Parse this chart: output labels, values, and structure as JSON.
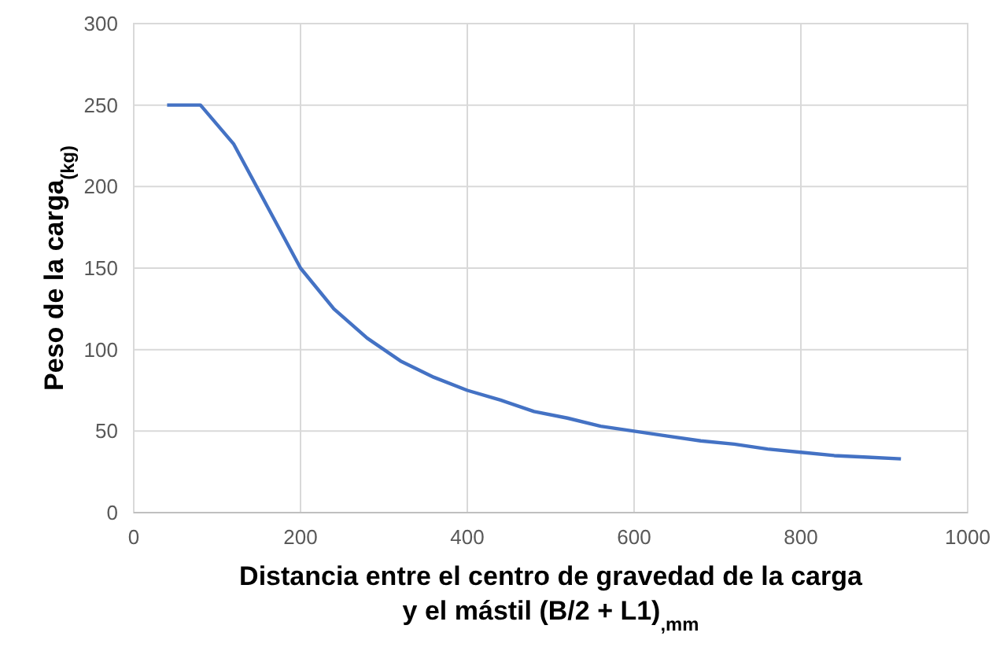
{
  "chart_data": {
    "type": "line",
    "xlabel": "Distancia entre el centro de gravedad de la carga\ny el mástil (B/2 + L1)$_{,mm}$",
    "ylabel": "Peso de la carga$_{(kg)}$",
    "x": [
      40,
      80,
      120,
      160,
      200,
      240,
      280,
      320,
      360,
      400,
      440,
      480,
      520,
      560,
      600,
      640,
      680,
      720,
      760,
      800,
      840,
      880,
      920
    ],
    "series": [
      {
        "color": "#4472c4",
        "values": [
          250,
          250,
          226,
          188,
          150,
          125,
          107,
          93,
          83,
          75,
          69,
          62,
          58,
          53,
          50,
          47,
          44,
          42,
          39,
          37,
          35,
          34,
          33
        ]
      }
    ],
    "xlim": [
      0,
      1000
    ],
    "xticks": [
      0,
      200,
      400,
      600,
      800,
      1000
    ],
    "ylim": [
      0,
      300
    ],
    "yticks": [
      0,
      50,
      100,
      150,
      200,
      250,
      300
    ],
    "grid": true,
    "marker": "none",
    "line_style": "solid"
  }
}
